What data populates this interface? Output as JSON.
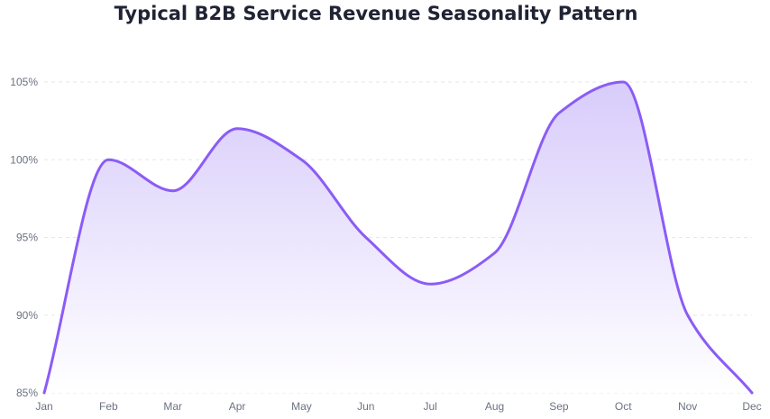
{
  "chart_data": {
    "type": "area",
    "title": "Typical B2B Service Revenue Seasonality Pattern",
    "xlabel": "",
    "ylabel": "",
    "categories": [
      "Jan",
      "Feb",
      "Mar",
      "Apr",
      "May",
      "Jun",
      "Jul",
      "Aug",
      "Sep",
      "Oct",
      "Nov",
      "Dec"
    ],
    "values": [
      85,
      100,
      98,
      102,
      100,
      95,
      92,
      94,
      103,
      105,
      90,
      85
    ],
    "ylim": [
      85,
      105
    ],
    "y_ticks": [
      "85%",
      "90%",
      "95%",
      "100%",
      "105%"
    ],
    "y_tick_values": [
      85,
      90,
      95,
      100,
      105
    ],
    "grid": true,
    "legend": "none",
    "colors": {
      "line": "#8b5cf6",
      "fill_top": "#d8ccfb",
      "fill_bottom": "#ffffff",
      "grid": "#e5e7eb",
      "title": "#1f2333",
      "tick": "#6b7280"
    }
  }
}
